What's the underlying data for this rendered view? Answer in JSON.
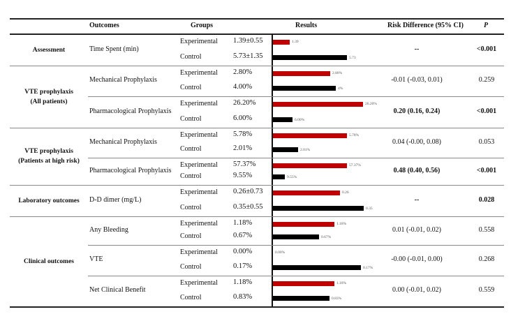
{
  "headers": {
    "outcomes": "Outcomes",
    "groups": "Groups",
    "results": "Results",
    "risk_difference": "Risk Difference (95% CI)",
    "p": "P"
  },
  "colors": {
    "experimental_bar": "#c00000",
    "control_bar": "#000000"
  },
  "categories": [
    {
      "lines": [
        "Assessment"
      ]
    },
    {
      "lines": [
        "VTE prophylaxis",
        "(All patients)"
      ]
    },
    {
      "lines": [
        "VTE prophylaxis",
        "(Patients at high risk)"
      ]
    },
    {
      "lines": [
        "Laboratory outcomes"
      ]
    },
    {
      "lines": [
        "Clinical outcomes"
      ]
    }
  ],
  "rows": [
    {
      "outcome": "Time Spent (min)",
      "exp": {
        "group": "Experimental",
        "value": "1.39±0.55",
        "bar_label": "1.39"
      },
      "ctl": {
        "group": "Control",
        "value": "5.73±1.35",
        "bar_label": "5.73"
      },
      "rd": "--",
      "p": "<0.001",
      "bold": true
    },
    {
      "outcome": "Mechanical Prophylaxis",
      "exp": {
        "group": "Experimental",
        "value": "2.80%",
        "bar_label": "2.80%"
      },
      "ctl": {
        "group": "Control",
        "value": "4.00%",
        "bar_label": "4%"
      },
      "rd": "-0.01 (-0.03, 0.01)",
      "p": "0.259",
      "bold": false
    },
    {
      "outcome": "Pharmacological Prophylaxis",
      "exp": {
        "group": "Experimental",
        "value": "26.20%",
        "bar_label": "26.20%"
      },
      "ctl": {
        "group": "Control",
        "value": "6.00%",
        "bar_label": "6.00%"
      },
      "rd": "0.20 (0.16, 0.24)",
      "p": "<0.001",
      "bold": true
    },
    {
      "outcome": "Mechanical Prophylaxis",
      "exp": {
        "group": "Experimental",
        "value": "5.78%",
        "bar_label": "5.78%"
      },
      "ctl": {
        "group": "Control",
        "value": "2.01%",
        "bar_label": "2.01%"
      },
      "rd": "0.04 (-0.00, 0.08)",
      "p": "0.053",
      "bold": false
    },
    {
      "outcome": "Pharmacological Prophylaxis",
      "exp": {
        "group": "Experimental",
        "value": "57.37%",
        "bar_label": "57.37%"
      },
      "ctl": {
        "group": "Control",
        "value": "9.55%",
        "bar_label": "9.55%"
      },
      "rd": "0.48 (0.40, 0.56)",
      "p": "<0.001",
      "bold": true
    },
    {
      "outcome": "D-D dimer (mg/L)",
      "exp": {
        "group": "Experimental",
        "value": "0.26±0.73",
        "bar_label": "0.26"
      },
      "ctl": {
        "group": "Control",
        "value": "0.35±0.55",
        "bar_label": "0.35"
      },
      "rd": "--",
      "p": "0.028",
      "bold": true
    },
    {
      "outcome": "Any Bleeding",
      "exp": {
        "group": "Experimental",
        "value": "1.18%",
        "bar_label": "1.18%"
      },
      "ctl": {
        "group": "Control",
        "value": "0.67%",
        "bar_label": "0.67%"
      },
      "rd": "0.01 (-0.01, 0.02)",
      "p": "0.558",
      "bold": false
    },
    {
      "outcome": "VTE",
      "exp": {
        "group": "Experimental",
        "value": "0.00%",
        "bar_label": "0.00%"
      },
      "ctl": {
        "group": "Control",
        "value": "0.17%",
        "bar_label": "0.17%"
      },
      "rd": "-0.00 (-0.01, 0.00)",
      "p": "0.268",
      "bold": false
    },
    {
      "outcome": "Net Clinical Benefit",
      "exp": {
        "group": "Experimental",
        "value": "1.18%",
        "bar_label": "1.18%"
      },
      "ctl": {
        "group": "Control",
        "value": "0.83%",
        "bar_label": "0.83%"
      },
      "rd": "0.00 (-0.01, 0.02)",
      "p": "0.559",
      "bold": false
    }
  ]
}
